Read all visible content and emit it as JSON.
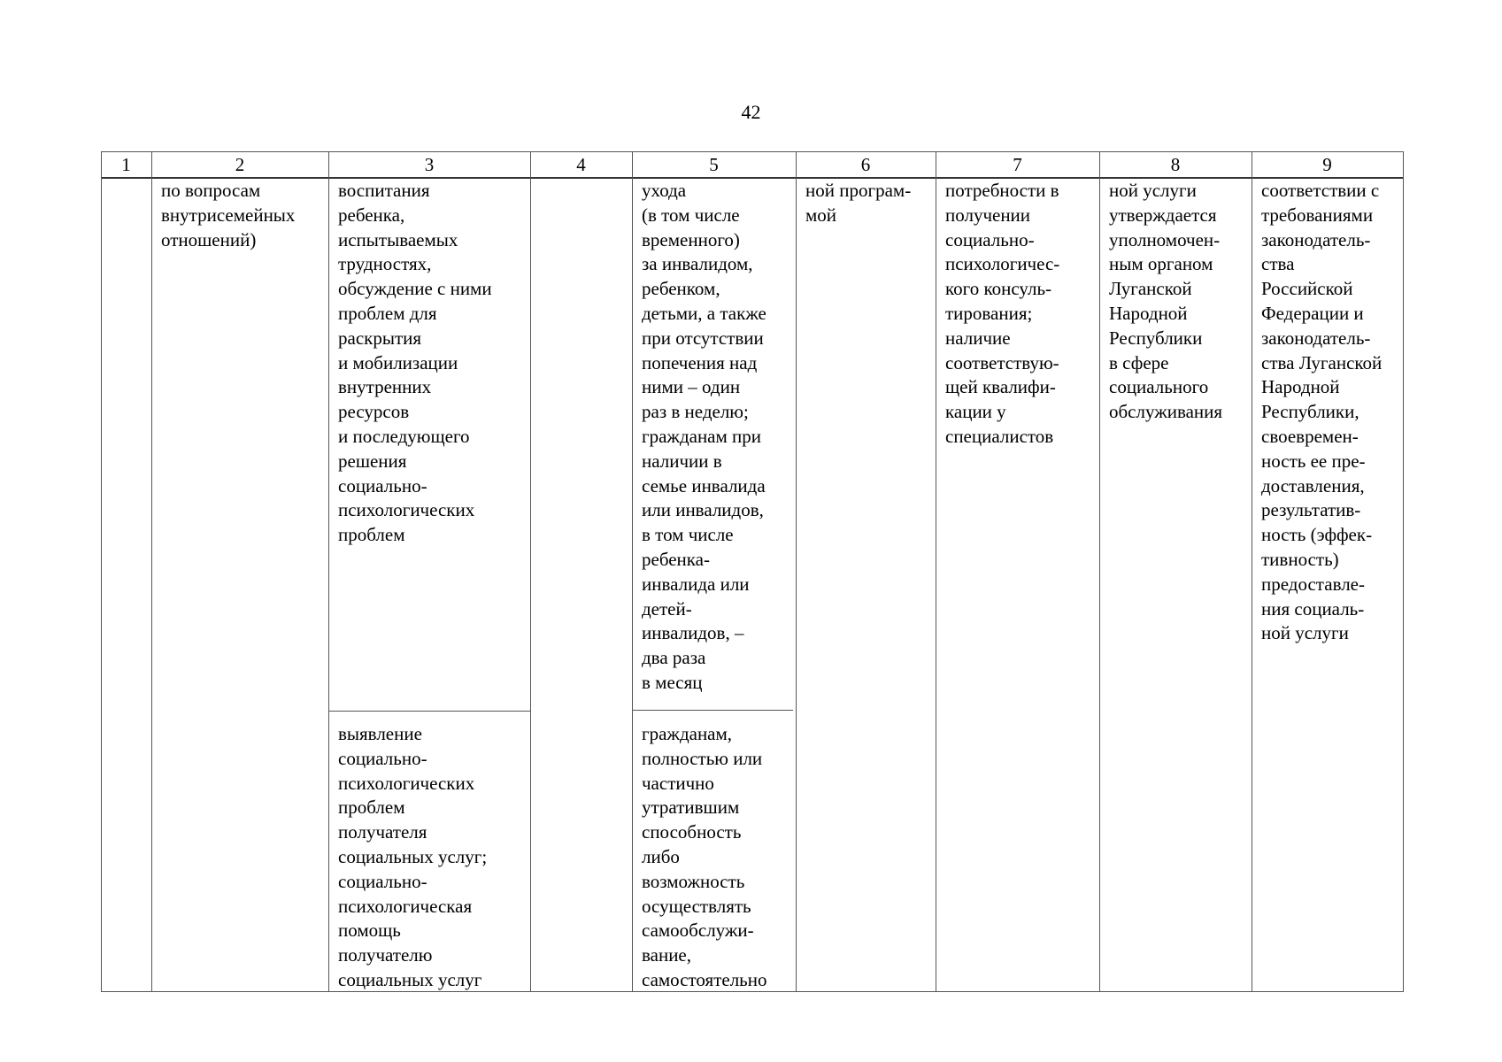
{
  "page_number": "42",
  "headers": [
    "1",
    "2",
    "3",
    "4",
    "5",
    "6",
    "7",
    "8",
    "9"
  ],
  "cells": {
    "c2": "по вопросам\nвнутрисемейных\nотношений)",
    "c3_top": "воспитания\nребенка,\nиспытываемых\nтрудностях,\nобсуждение с ними\nпроблем для\nраскрытия\nи мобилизации\nвнутренних\nресурсов\nи последующего\nрешения\nсоциально-\nпсихологических\nпроблем",
    "c3_bottom": "выявление\nсоциально-\nпсихологических\nпроблем\nполучателя\nсоциальных услуг;\nсоциально-\nпсихологическая\nпомощь\nполучателю\nсоциальных услуг",
    "c5_top": "ухода\n(в том числе\nвременного)\nза инвалидом,\nребенком,\nдетьми, а также\nпри отсутствии\nпопечения над\nними – один\nраз в неделю;\nгражданам при\nналичии в\nсемье инвалида\nили инвалидов,\nв том числе\nребенка-\nинвалида или\nдетей-\nинвалидов, –\nдва раза\nв месяц",
    "c5_bottom": "гражданам,\nполностью или\nчастично\nутратившим\nспособность\nлибо\nвозможность\nосуществлять\nсамообслужи-\nвание,\nсамостоятельно",
    "c6": "ной програм-\nмой",
    "c7": "потребности в\nполучении\nсоциально-\nпсихологичес-\nкого консуль-\nтирования;\nналичие\nсоответствую-\nщей квалифи-\nкации у\nспециалистов",
    "c8": "ной услуги\nутверждается\nуполномочен-\nным органом\nЛуганской\nНародной\nРеспублики\nв сфере\nсоциального\nобслуживания",
    "c9": "соответствии с\nтребованиями\nзаконодатель-\nства\nРоссийской\nФедерации и\nзаконодатель-\nства Луганской\nНародной\nРеспублики,\nсвоевремен-\nность ее пре-\nдоставления,\nрезультатив-\nность (эффек-\nтивность)\nпредоставле-\nния социаль-\nной услуги"
  }
}
